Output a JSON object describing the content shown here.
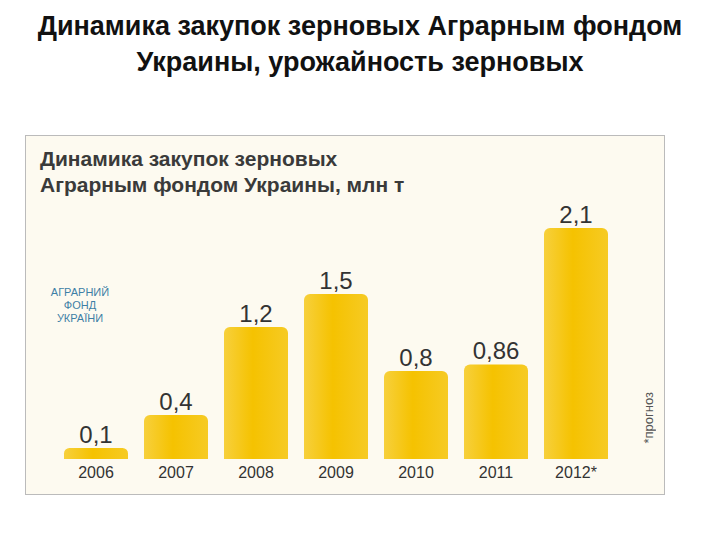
{
  "slide_title": "Динамика закупок зерновых Аграрным фондом Украины, урожайность зерновых",
  "chart_data": {
    "type": "bar",
    "title": "Динамика закупок зерновых Аграрным фондом Украины, млн т",
    "logo_text": "АГРАРНИЙ ФОНД УКРАЇНИ",
    "note": "*прогноз",
    "categories": [
      "2006",
      "2007",
      "2008",
      "2009",
      "2010",
      "2011",
      "2012*"
    ],
    "values": [
      0.1,
      0.4,
      1.2,
      1.5,
      0.8,
      0.86,
      2.1
    ],
    "value_labels": [
      "0,1",
      "0,4",
      "1,2",
      "1,5",
      "0,8",
      "0,86",
      "2,1"
    ],
    "color": "#f5c200",
    "data_labels": true,
    "tick_labels": "x",
    "grid": false
  }
}
